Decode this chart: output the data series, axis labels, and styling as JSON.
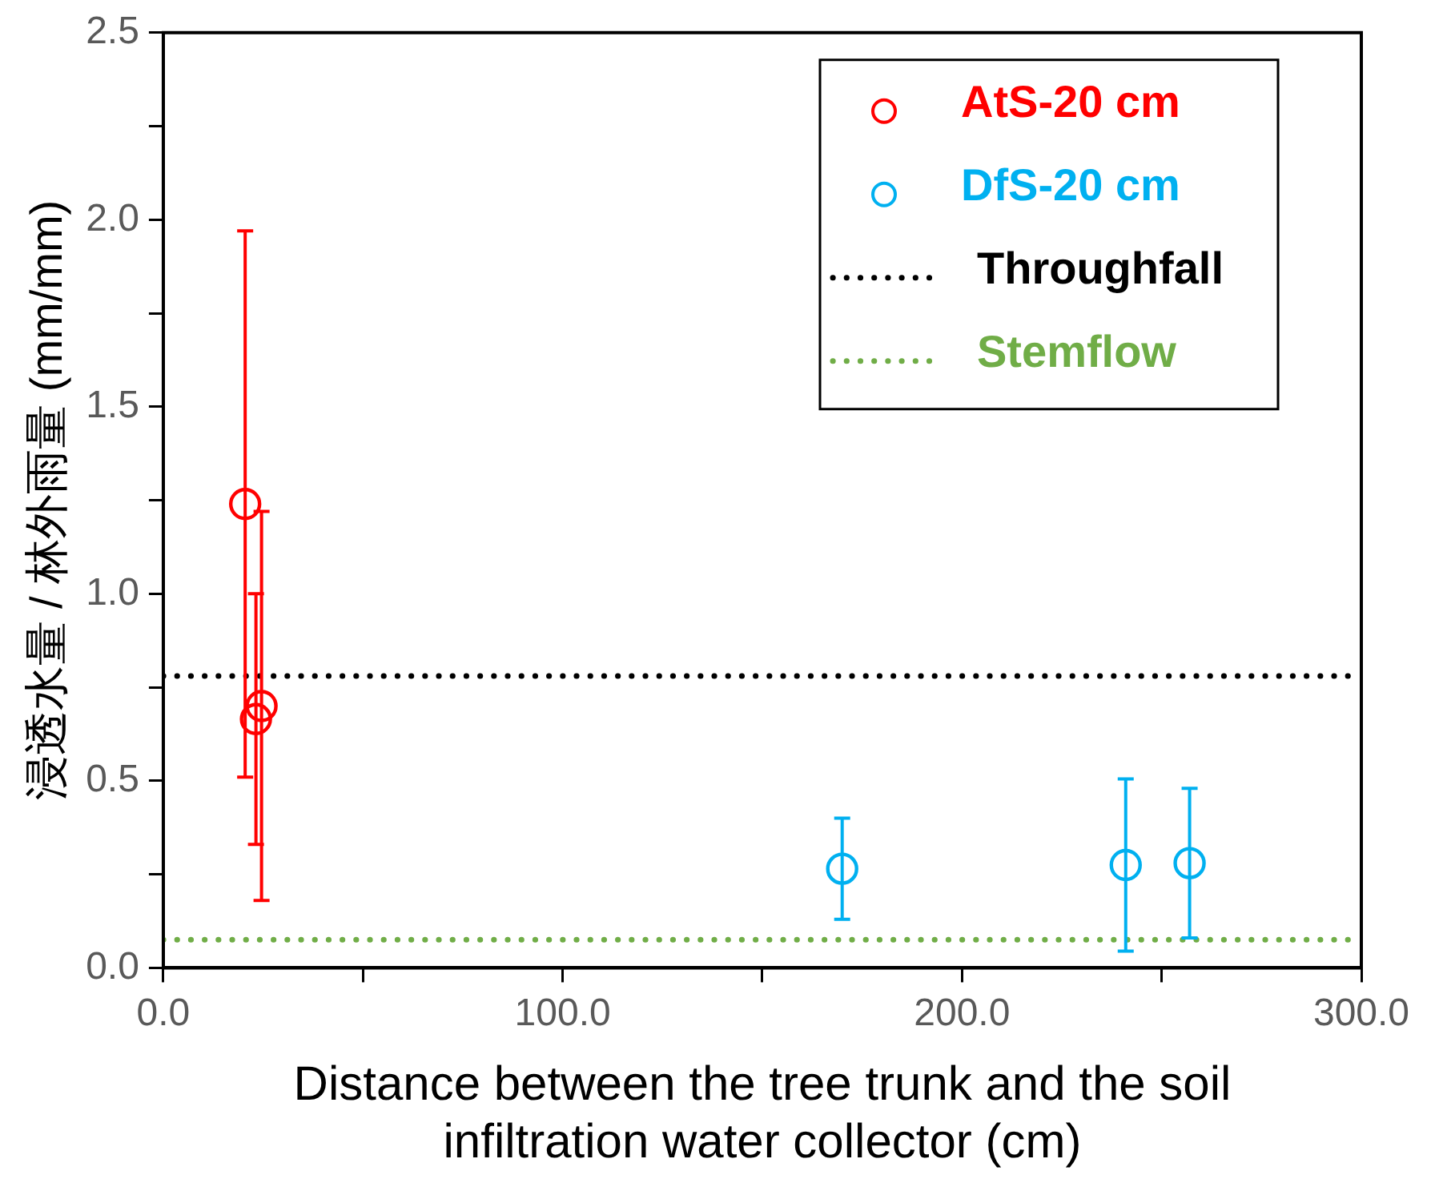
{
  "chart_data": {
    "type": "scatter",
    "xlabel": "Distance between the tree trunk and the soil infiltration water collector (cm)",
    "ylabel": "浸透水量 / 林外雨量 (mm/mm)",
    "xlim": [
      0,
      300
    ],
    "xticks": [
      {
        "value": 0,
        "label": "0.0"
      },
      {
        "value": 50,
        "label": null
      },
      {
        "value": 100,
        "label": "100.0"
      },
      {
        "value": 150,
        "label": null
      },
      {
        "value": 200,
        "label": "200.0"
      },
      {
        "value": 250,
        "label": null
      },
      {
        "value": 300,
        "label": "300.0"
      }
    ],
    "ylim": [
      0,
      2.5
    ],
    "yticks": [
      {
        "value": 0,
        "label": "0.0"
      },
      {
        "value": 0.25,
        "label": null
      },
      {
        "value": 0.5,
        "label": "0.5"
      },
      {
        "value": 0.75,
        "label": null
      },
      {
        "value": 1,
        "label": "1.0"
      },
      {
        "value": 1.25,
        "label": null
      },
      {
        "value": 1.5,
        "label": "1.5"
      },
      {
        "value": 1.75,
        "label": null
      },
      {
        "value": 2,
        "label": "2.0"
      },
      {
        "value": 2.25,
        "label": null
      },
      {
        "value": 2.5,
        "label": "2.5"
      }
    ],
    "grid": false,
    "legend": "top right",
    "marker": "circle",
    "series": [
      {
        "name": "AtS-20 cm",
        "color": "#ff0000",
        "x": [
          20.5,
          23.2,
          24.6
        ],
        "values": [
          1.24,
          0.665,
          0.7
        ],
        "errors": [
          0.73,
          0.335,
          0.52
        ]
      },
      {
        "name": "DfS-20 cm",
        "color": "#00b0f0",
        "x": [
          170,
          241,
          257
        ],
        "values": [
          0.265,
          0.275,
          0.28
        ],
        "errors": [
          0.135,
          0.23,
          0.2
        ]
      },
      {
        "name": "Throughfall",
        "color": "#000000",
        "type": "line",
        "marker": "none",
        "line_style": "dotted",
        "x": [
          0,
          300
        ],
        "values": [
          0.78,
          0.78
        ]
      },
      {
        "name": "Stemflow",
        "color": "#70ad47",
        "type": "line",
        "marker": "none",
        "line_style": "dotted",
        "x": [
          0,
          300
        ],
        "values": [
          0.075,
          0.075
        ]
      }
    ]
  }
}
